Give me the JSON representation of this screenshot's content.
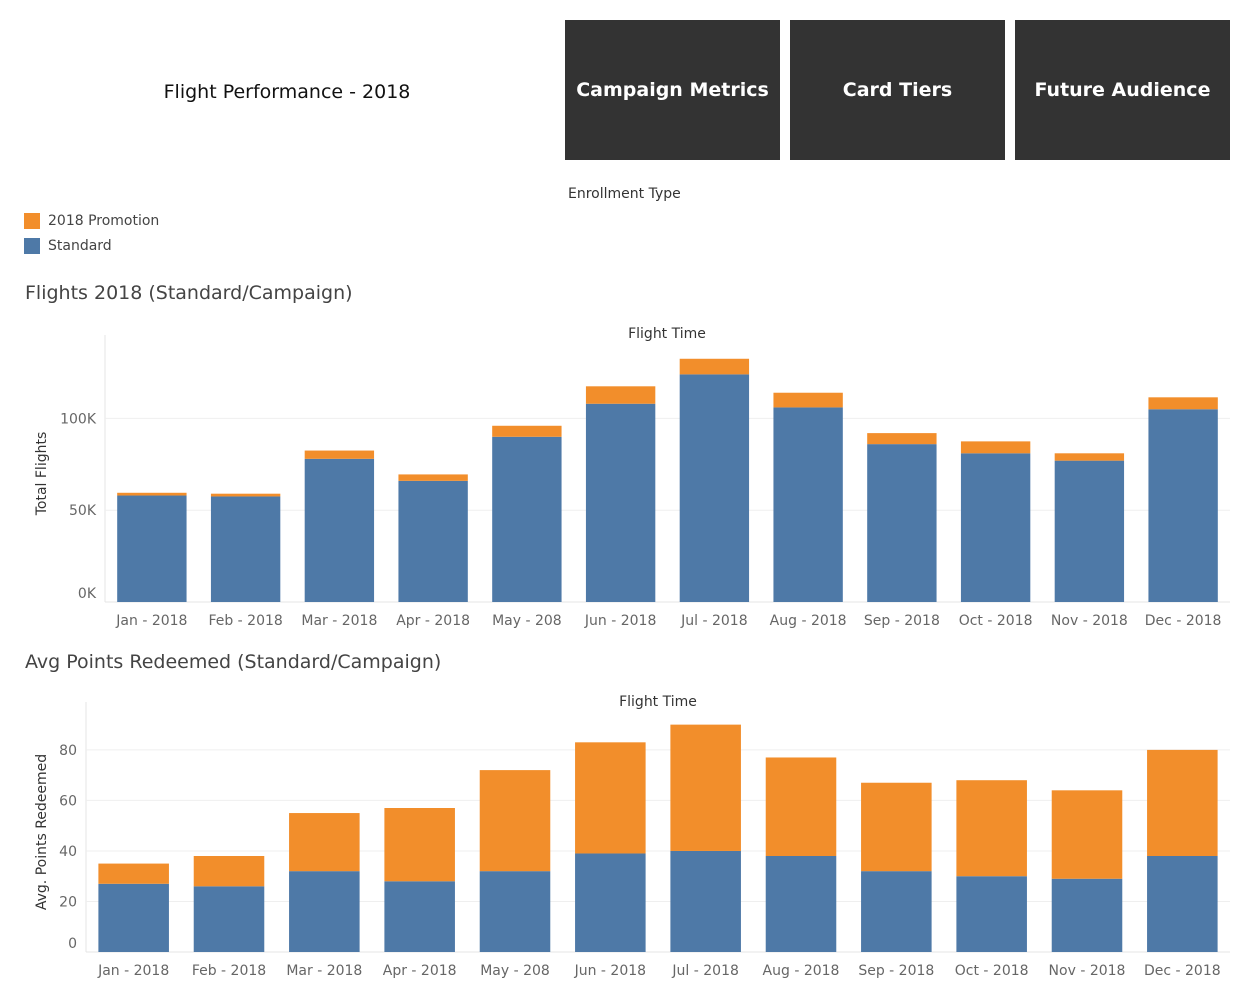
{
  "header": {
    "title": "Flight Performance - 2018",
    "nav": [
      {
        "label": "Campaign Metrics"
      },
      {
        "label": "Card Tiers"
      },
      {
        "label": "Future Audience"
      }
    ]
  },
  "legend": {
    "title": "Enrollment Type",
    "items": [
      {
        "label": "2018 Promotion",
        "color": "#f28e2b"
      },
      {
        "label": "Standard",
        "color": "#4e79a7"
      }
    ]
  },
  "chart_data": [
    {
      "type": "bar",
      "stacked": true,
      "title": "Flights 2018 (Standard/Campaign)",
      "xlabel": "Flight Time",
      "ylabel": "Total Flights",
      "categories": [
        "Jan - 2018",
        "Feb - 2018",
        "Mar - 2018",
        "Apr - 2018",
        "May - 208",
        "Jun - 2018",
        "Jul - 2018",
        "Aug - 2018",
        "Sep - 2018",
        "Oct - 2018",
        "Nov - 2018",
        "Dec - 2018"
      ],
      "yticks": [
        "0K",
        "50K",
        "100K"
      ],
      "ytick_values": [
        0,
        50000,
        100000
      ],
      "ylim": [
        0,
        140000
      ],
      "grid": true,
      "legend_position": "top-left",
      "series": [
        {
          "name": "Standard",
          "color": "#4e79a7",
          "values": [
            58000,
            57500,
            78000,
            66000,
            90000,
            108000,
            124000,
            106000,
            86000,
            81000,
            77000,
            105000
          ]
        },
        {
          "name": "2018 Promotion",
          "color": "#f28e2b",
          "values": [
            1500,
            1500,
            4500,
            3500,
            6000,
            9500,
            8500,
            8000,
            6000,
            6500,
            4000,
            6500
          ]
        }
      ]
    },
    {
      "type": "bar",
      "stacked": true,
      "title": "Avg Points Redeemed (Standard/Campaign)",
      "xlabel": "Flight Time",
      "ylabel": "Avg. Points Redeemed",
      "categories": [
        "Jan - 2018",
        "Feb - 2018",
        "Mar - 2018",
        "Apr - 2018",
        "May - 208",
        "Jun - 2018",
        "Jul - 2018",
        "Aug - 2018",
        "Sep - 2018",
        "Oct - 2018",
        "Nov - 2018",
        "Dec - 2018"
      ],
      "yticks": [
        "0",
        "20",
        "40",
        "60",
        "80"
      ],
      "ytick_values": [
        0,
        20,
        40,
        60,
        80
      ],
      "ylim": [
        0,
        95
      ],
      "grid": true,
      "legend_position": "top-left",
      "series": [
        {
          "name": "Standard",
          "color": "#4e79a7",
          "values": [
            27,
            26,
            32,
            28,
            32,
            39,
            40,
            38,
            32,
            30,
            29,
            38
          ]
        },
        {
          "name": "2018 Promotion",
          "color": "#f28e2b",
          "values": [
            8,
            12,
            23,
            29,
            40,
            44,
            50,
            39,
            35,
            38,
            35,
            42
          ]
        }
      ]
    }
  ]
}
